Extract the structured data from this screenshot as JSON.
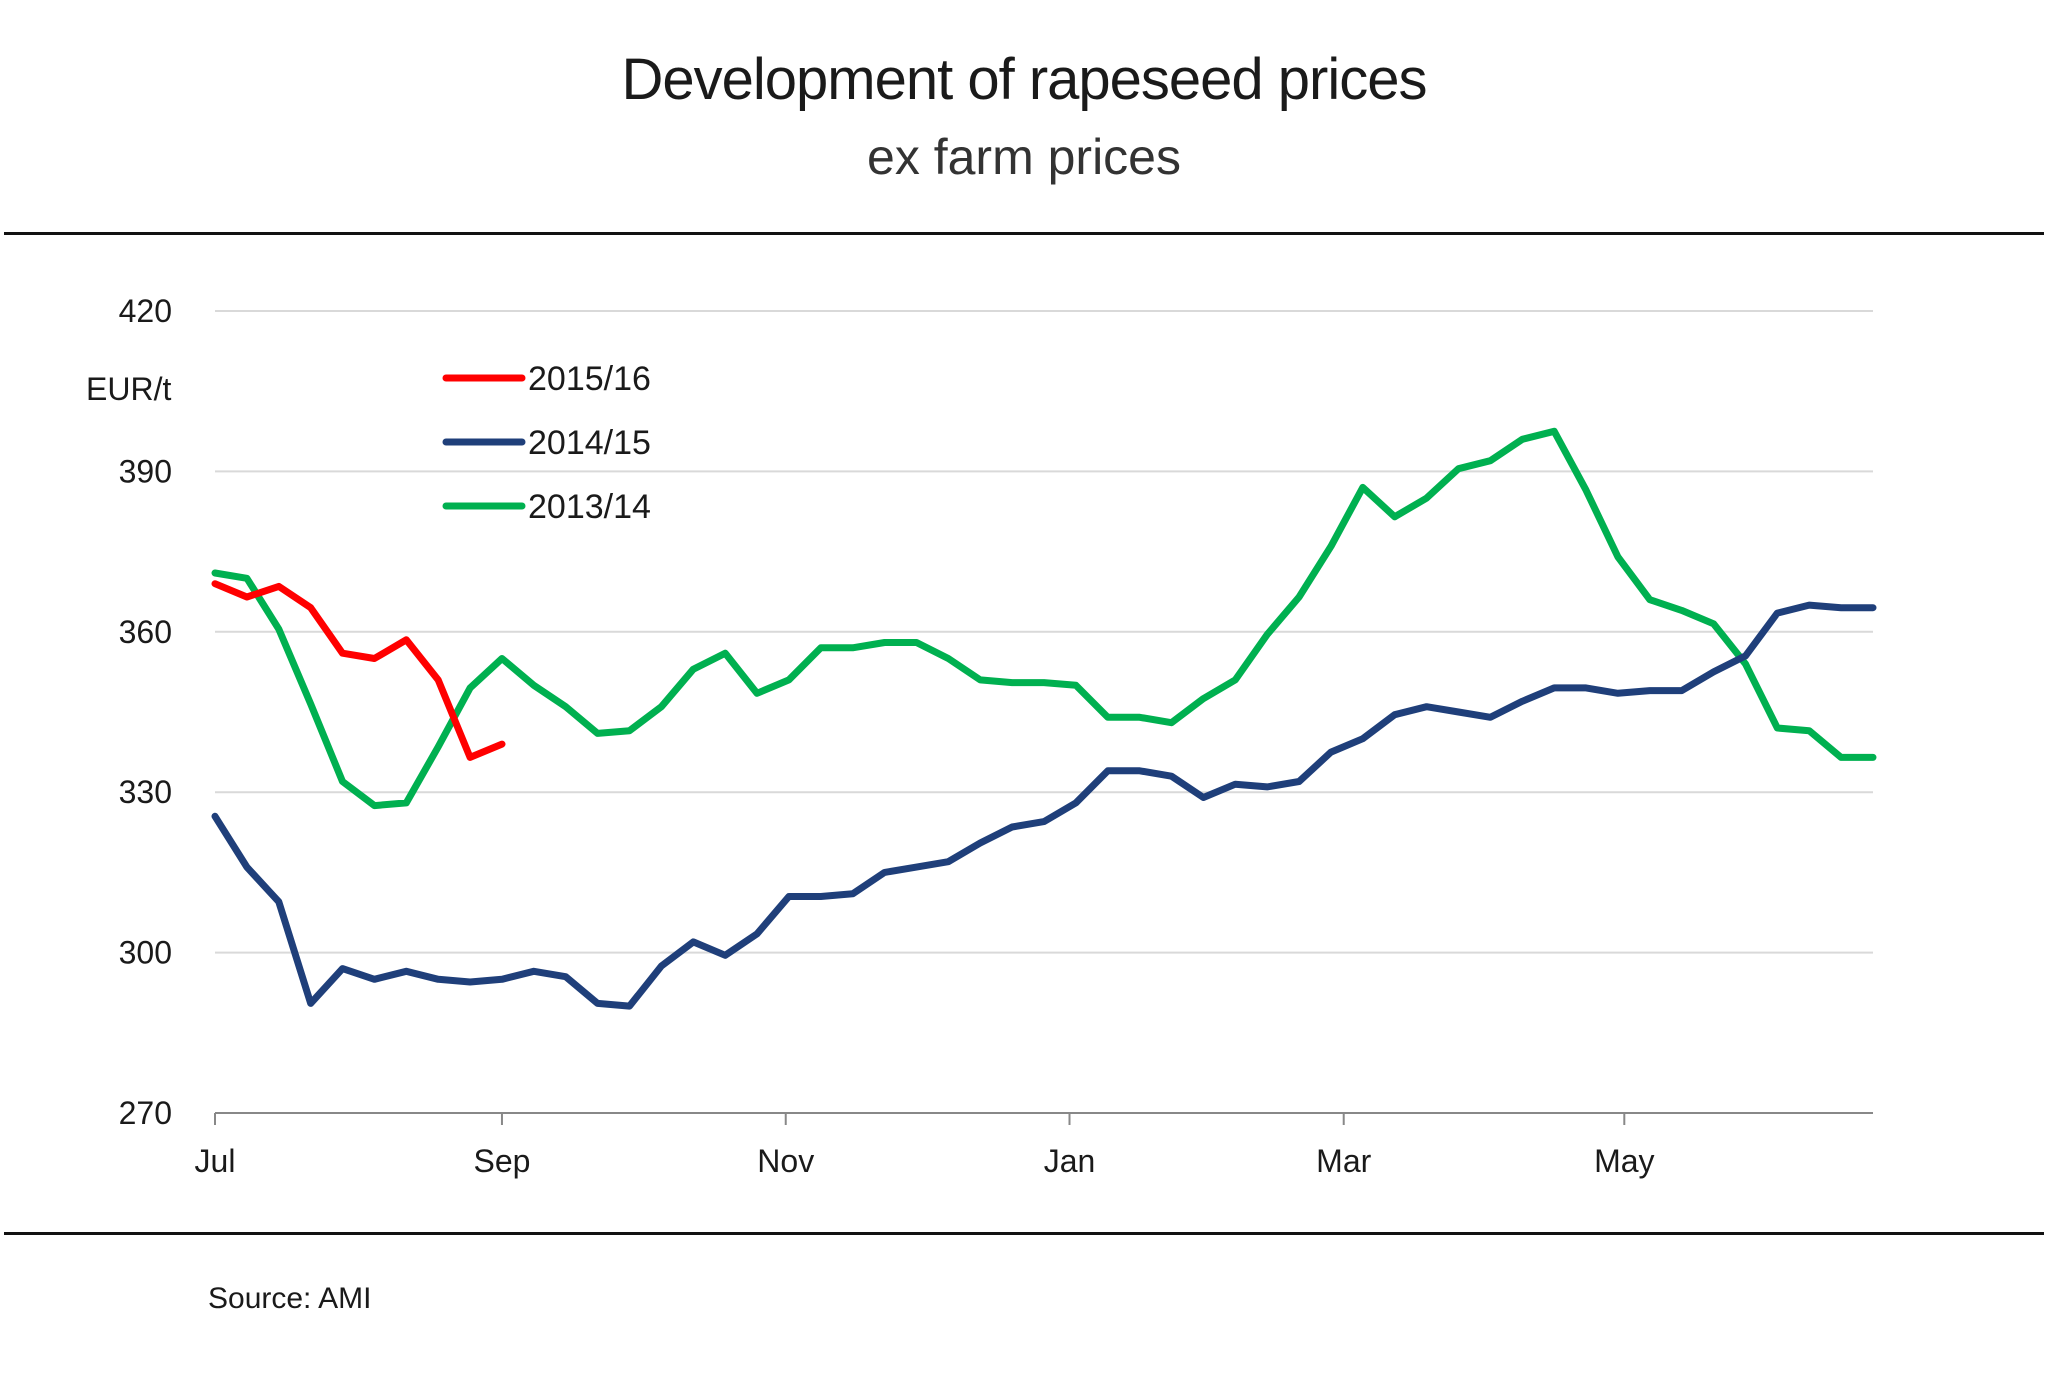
{
  "title": "Development of rapeseed prices",
  "subtitle": "ex farm prices",
  "source": "Source: AMI",
  "chart_data": {
    "type": "line",
    "ylabel": "EUR/t",
    "xlabel": "",
    "ylim": [
      270,
      420
    ],
    "yticks": [
      270,
      300,
      330,
      360,
      390,
      420
    ],
    "xlim": [
      0,
      52
    ],
    "xticks": [
      {
        "label": "Jul",
        "x": 0
      },
      {
        "label": "Sep",
        "x": 9
      },
      {
        "label": "Nov",
        "x": 17.9
      },
      {
        "label": "Jan",
        "x": 26.8
      },
      {
        "label": "Mar",
        "x": 35.4
      },
      {
        "label": "May",
        "x": 44.2
      }
    ],
    "grid": "horizontal",
    "legend_position": "top-left",
    "series": [
      {
        "name": "2015/16",
        "color": "#ff0000",
        "x": [
          0,
          1,
          2,
          3,
          4,
          5,
          6,
          7,
          8,
          9
        ],
        "values": [
          369,
          366.5,
          368.5,
          364.5,
          356,
          355,
          358.5,
          351,
          336.5,
          339
        ]
      },
      {
        "name": "2014/15",
        "color": "#1f3f7a",
        "x": [
          0,
          1,
          2,
          3,
          4,
          5,
          6,
          7,
          8,
          9,
          10,
          11,
          12,
          13,
          14,
          15,
          16,
          17,
          18,
          19,
          20,
          21,
          22,
          23,
          24,
          25,
          26,
          27,
          28,
          29,
          30,
          31,
          32,
          33,
          34,
          35,
          36,
          37,
          38,
          39,
          40,
          41,
          42,
          43,
          44,
          45,
          46,
          47,
          48,
          49,
          50,
          51,
          52
        ],
        "values": [
          325.5,
          316,
          309.5,
          290.5,
          297,
          295,
          296.5,
          295,
          294.5,
          295,
          296.5,
          295.5,
          290.5,
          290,
          297.5,
          302,
          299.5,
          303.5,
          310.5,
          310.5,
          311,
          315,
          316,
          317,
          320.5,
          323.5,
          324.5,
          328,
          334,
          334,
          333,
          329,
          331.5,
          331,
          332,
          337.5,
          340,
          344.5,
          346,
          345,
          344,
          347,
          349.5,
          349.5,
          348.5,
          349,
          349,
          352.5,
          355.5,
          363.5,
          365,
          364.5,
          364.5
        ]
      },
      {
        "name": "2013/14",
        "color": "#00b050",
        "x": [
          0,
          1,
          2,
          3,
          4,
          5,
          6,
          7,
          8,
          9,
          10,
          11,
          12,
          13,
          14,
          15,
          16,
          17,
          18,
          19,
          20,
          21,
          22,
          23,
          24,
          25,
          26,
          27,
          28,
          29,
          30,
          31,
          32,
          33,
          34,
          35,
          36,
          37,
          38,
          39,
          40,
          41,
          42,
          43,
          44,
          45,
          46,
          47,
          48,
          49,
          50,
          51,
          52
        ],
        "values": [
          371,
          370,
          360.5,
          346.5,
          332,
          327.5,
          328,
          338.5,
          349.5,
          355,
          350,
          346,
          341,
          341.5,
          346,
          353,
          356,
          348.5,
          351,
          357,
          357,
          358,
          358,
          355,
          351,
          350.5,
          350.5,
          350,
          344,
          344,
          343,
          347.5,
          351,
          359.5,
          366.5,
          376,
          387,
          381.5,
          385,
          390.5,
          392,
          396,
          397.5,
          386.5,
          374,
          366,
          364,
          361.5,
          354,
          342,
          341.5,
          336.5,
          336.5
        ]
      }
    ]
  }
}
